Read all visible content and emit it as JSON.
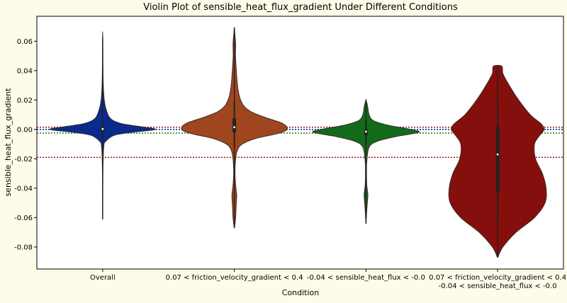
{
  "chart_data": {
    "type": "violin",
    "title": "Violin Plot of sensible_heat_flux_gradient Under Different Conditions",
    "xlabel": "Condition",
    "ylabel": "sensible_heat_flux_gradient",
    "ylim": [
      -0.095,
      0.077
    ],
    "y_ticks": [
      -0.08,
      -0.06,
      -0.04,
      -0.02,
      0.0,
      0.02,
      0.04,
      0.06
    ],
    "y_tick_labels": [
      "-0.08",
      "-0.06",
      "-0.04",
      "-0.02",
      "0.00",
      "0.02",
      "0.04",
      "0.06"
    ],
    "categories": [
      [
        "Overall"
      ],
      [
        "0.07 < friction_velocity_gradient < 0.4"
      ],
      [
        "-0.04 < sensible_heat_flux < -0.0"
      ],
      [
        "0.07 < friction_velocity_gradient < 0.4",
        "-0.04 < sensible_heat_flux < -0.0"
      ]
    ],
    "violins": [
      {
        "color": "#0a2a8c",
        "min": -0.061,
        "max": 0.063,
        "q1": -0.0015,
        "median": 0.0003,
        "q3": 0.0015,
        "whisker_low": -0.006,
        "whisker_high": 0.006,
        "density": [
          [
            -0.061,
            0.002
          ],
          [
            -0.03,
            0.004
          ],
          [
            -0.012,
            0.02
          ],
          [
            -0.008,
            0.06
          ],
          [
            -0.004,
            0.22
          ],
          [
            -0.002,
            0.55
          ],
          [
            0.0,
            1.0
          ],
          [
            0.002,
            0.7
          ],
          [
            0.004,
            0.35
          ],
          [
            0.007,
            0.16
          ],
          [
            0.012,
            0.08
          ],
          [
            0.02,
            0.03
          ],
          [
            0.035,
            0.008
          ],
          [
            0.063,
            0.002
          ]
        ]
      },
      {
        "color": "#a0461e",
        "min": -0.067,
        "max": 0.069,
        "q1": -0.002,
        "median": 0.0015,
        "q3": 0.0075,
        "whisker_low": -0.012,
        "whisker_high": 0.019,
        "density": [
          [
            -0.067,
            0.003
          ],
          [
            -0.06,
            0.025
          ],
          [
            -0.052,
            0.035
          ],
          [
            -0.045,
            0.045
          ],
          [
            -0.038,
            0.025
          ],
          [
            -0.03,
            0.012
          ],
          [
            -0.02,
            0.025
          ],
          [
            -0.014,
            0.06
          ],
          [
            -0.01,
            0.15
          ],
          [
            -0.006,
            0.42
          ],
          [
            -0.003,
            0.8
          ],
          [
            0.0,
            1.0
          ],
          [
            0.004,
            0.92
          ],
          [
            0.008,
            0.6
          ],
          [
            0.012,
            0.32
          ],
          [
            0.016,
            0.18
          ],
          [
            0.022,
            0.1
          ],
          [
            0.03,
            0.06
          ],
          [
            0.04,
            0.038
          ],
          [
            0.05,
            0.022
          ],
          [
            0.058,
            0.025
          ],
          [
            0.064,
            0.012
          ],
          [
            0.069,
            0.002
          ]
        ]
      },
      {
        "color": "#126b1a",
        "min": -0.064,
        "max": 0.02,
        "q1": -0.004,
        "median": -0.0015,
        "q3": 0.0,
        "whisker_low": -0.01,
        "whisker_high": 0.006,
        "density": [
          [
            -0.064,
            0.002
          ],
          [
            -0.055,
            0.015
          ],
          [
            -0.048,
            0.03
          ],
          [
            -0.044,
            0.035
          ],
          [
            -0.038,
            0.015
          ],
          [
            -0.03,
            0.01
          ],
          [
            -0.022,
            0.015
          ],
          [
            -0.012,
            0.06
          ],
          [
            -0.008,
            0.22
          ],
          [
            -0.005,
            0.55
          ],
          [
            -0.002,
            1.0
          ],
          [
            0.0,
            0.85
          ],
          [
            0.003,
            0.4
          ],
          [
            0.006,
            0.14
          ],
          [
            0.01,
            0.06
          ],
          [
            0.016,
            0.03
          ],
          [
            0.02,
            0.002
          ]
        ]
      },
      {
        "color": "#850f0c",
        "min": -0.087,
        "max": 0.043,
        "q1": -0.043,
        "median": -0.017,
        "q3": 0.002,
        "whisker_low": -0.059,
        "whisker_high": 0.015,
        "density": [
          [
            -0.087,
            0.005
          ],
          [
            -0.08,
            0.1
          ],
          [
            -0.07,
            0.35
          ],
          [
            -0.06,
            0.7
          ],
          [
            -0.05,
            0.9
          ],
          [
            -0.04,
            0.92
          ],
          [
            -0.03,
            0.85
          ],
          [
            -0.02,
            0.72
          ],
          [
            -0.01,
            0.7
          ],
          [
            -0.004,
            0.8
          ],
          [
            0.0,
            0.88
          ],
          [
            0.004,
            0.82
          ],
          [
            0.01,
            0.62
          ],
          [
            0.02,
            0.4
          ],
          [
            0.03,
            0.22
          ],
          [
            0.038,
            0.1
          ],
          [
            0.043,
            0.08
          ]
        ]
      }
    ],
    "reference_lines": [
      {
        "y": 0.0015,
        "color": "#9b1c1c"
      },
      {
        "y": 0.0,
        "color": "#1a2a8a"
      },
      {
        "y": -0.0025,
        "color": "#1f7a1f"
      },
      {
        "y": -0.019,
        "color": "#9b1c1c"
      }
    ]
  }
}
